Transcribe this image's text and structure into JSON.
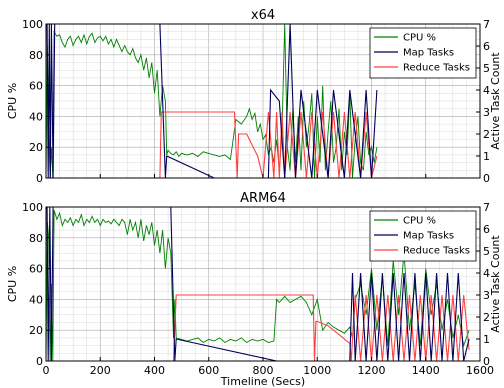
{
  "chart_data": [
    {
      "type": "line",
      "title": "x64",
      "xlabel": "",
      "ylabel": "CPU %",
      "ylabel_right": "Active Task Count",
      "xlim": [
        0,
        1600
      ],
      "ylim": [
        0,
        100
      ],
      "ylim_right": [
        0,
        7
      ],
      "x_ticks": [],
      "y_ticks": [
        "0",
        "20",
        "40",
        "60",
        "80",
        "100"
      ],
      "y_ticks_right": [
        "0",
        "1",
        "2",
        "3",
        "4",
        "5",
        "6",
        "7"
      ],
      "grid": true,
      "legend_position": "top-right",
      "series": [
        {
          "name": "CPU %",
          "color": "#008000",
          "axis": "left",
          "x": [
            0,
            5,
            10,
            15,
            20,
            25,
            30,
            40,
            50,
            60,
            70,
            80,
            90,
            100,
            110,
            120,
            130,
            140,
            150,
            160,
            170,
            180,
            190,
            200,
            210,
            220,
            230,
            240,
            250,
            260,
            270,
            280,
            290,
            300,
            310,
            320,
            330,
            340,
            350,
            360,
            370,
            380,
            390,
            400,
            410,
            420,
            430,
            440,
            445,
            450,
            460,
            470,
            480,
            490,
            500,
            520,
            540,
            560,
            580,
            600,
            620,
            640,
            660,
            680,
            700,
            720,
            740,
            750,
            760,
            770,
            780,
            790,
            800,
            810,
            820,
            830,
            840,
            850,
            860,
            870,
            880,
            890,
            900,
            910,
            920,
            930,
            940,
            950,
            960,
            970,
            980,
            990,
            1000,
            1010,
            1020,
            1030,
            1040,
            1050,
            1060,
            1070,
            1080,
            1090,
            1100,
            1110,
            1120,
            1130,
            1140,
            1150,
            1160,
            1170,
            1180,
            1190,
            1200,
            1210,
            1220
          ],
          "y": [
            0,
            85,
            30,
            0,
            20,
            0,
            95,
            92,
            93,
            88,
            85,
            90,
            92,
            86,
            90,
            92,
            88,
            93,
            87,
            92,
            94,
            88,
            91,
            92,
            89,
            92,
            87,
            90,
            85,
            90,
            86,
            82,
            86,
            82,
            80,
            84,
            78,
            75,
            80,
            70,
            78,
            65,
            75,
            55,
            70,
            40,
            60,
            50,
            15,
            18,
            16,
            15,
            17,
            14,
            16,
            15,
            16,
            14,
            17,
            16,
            15,
            14,
            15,
            12,
            38,
            35,
            40,
            45,
            38,
            42,
            30,
            35,
            25,
            28,
            15,
            20,
            10,
            25,
            5,
            30,
            100,
            20,
            5,
            45,
            10,
            40,
            5,
            50,
            20,
            35,
            55,
            0,
            40,
            10,
            60,
            5,
            30,
            50,
            10,
            20,
            45,
            5,
            30,
            15,
            55,
            0,
            25,
            40,
            10,
            5,
            30,
            15,
            20,
            10,
            20
          ]
        },
        {
          "name": "Map Tasks",
          "color": "#00005a",
          "axis": "right",
          "x": [
            0,
            4,
            8,
            12,
            16,
            20,
            26,
            32,
            420,
            440,
            445,
            620,
            660,
            680,
            800,
            820,
            828,
            860,
            880,
            900,
            920,
            940,
            980,
            1000,
            1040,
            1060,
            1100,
            1120,
            1160,
            1180,
            1200,
            1220
          ],
          "y": [
            7,
            7,
            0,
            7,
            0,
            7,
            0,
            7,
            7,
            0,
            1,
            0,
            0,
            0,
            0,
            0,
            4,
            3.5,
            0,
            7,
            0,
            4,
            0,
            4,
            0,
            4,
            0,
            4,
            0,
            4,
            0,
            4
          ]
        },
        {
          "name": "Reduce Tasks",
          "color": "#ff4040",
          "axis": "right",
          "x": [
            415,
            420,
            425,
            695,
            705,
            710,
            740,
            760,
            780,
            800,
            820,
            840,
            850,
            860,
            870,
            880,
            900,
            920,
            940,
            960,
            980,
            1000,
            1020,
            1040,
            1060,
            1080,
            1100,
            1120,
            1140,
            1160,
            1180,
            1200,
            1220
          ],
          "y": [
            0,
            0,
            3,
            3,
            0,
            2,
            2,
            1.5,
            1,
            0,
            3,
            0,
            3,
            0,
            3,
            0,
            3,
            0,
            3,
            0,
            3,
            0,
            3,
            0,
            3,
            0,
            3,
            0,
            3,
            0,
            3,
            0,
            1
          ]
        }
      ]
    },
    {
      "type": "line",
      "title": "ARM64",
      "xlabel": "Timeline (Secs)",
      "ylabel": "CPU %",
      "ylabel_right": "Active Task Count",
      "xlim": [
        0,
        1600
      ],
      "ylim": [
        0,
        100
      ],
      "ylim_right": [
        0,
        7
      ],
      "x_ticks": [
        "0",
        "200",
        "400",
        "600",
        "800",
        "1000",
        "1200",
        "1400",
        "1600"
      ],
      "y_ticks": [
        "0",
        "20",
        "40",
        "60",
        "80",
        "100"
      ],
      "y_ticks_right": [
        "0",
        "1",
        "2",
        "3",
        "4",
        "5",
        "6",
        "7"
      ],
      "grid": true,
      "legend_position": "top-right",
      "series": [
        {
          "name": "CPU %",
          "color": "#008000",
          "axis": "left",
          "x": [
            0,
            5,
            10,
            15,
            20,
            25,
            30,
            40,
            50,
            60,
            70,
            80,
            90,
            100,
            110,
            120,
            130,
            140,
            150,
            160,
            170,
            180,
            190,
            200,
            210,
            220,
            230,
            240,
            250,
            260,
            270,
            280,
            290,
            300,
            310,
            320,
            330,
            340,
            350,
            360,
            370,
            380,
            390,
            400,
            410,
            420,
            430,
            440,
            450,
            460,
            470,
            475,
            480,
            500,
            520,
            540,
            560,
            580,
            600,
            620,
            640,
            660,
            680,
            700,
            720,
            740,
            760,
            780,
            800,
            820,
            840,
            850,
            860,
            880,
            900,
            920,
            940,
            960,
            980,
            990,
            1000,
            1020,
            1040,
            1060,
            1080,
            1100,
            1110,
            1120,
            1130,
            1140,
            1160,
            1180,
            1200,
            1220,
            1240,
            1260,
            1280,
            1300,
            1320,
            1340,
            1360,
            1380,
            1400,
            1420,
            1440,
            1460,
            1480,
            1500,
            1520,
            1540,
            1560
          ],
          "y": [
            0,
            90,
            80,
            0,
            50,
            0,
            98,
            92,
            96,
            88,
            92,
            90,
            93,
            88,
            92,
            90,
            95,
            88,
            92,
            90,
            94,
            90,
            92,
            88,
            92,
            90,
            91,
            89,
            92,
            90,
            88,
            92,
            90,
            82,
            92,
            85,
            90,
            80,
            92,
            78,
            88,
            82,
            90,
            75,
            85,
            70,
            85,
            60,
            80,
            70,
            15,
            40,
            15,
            14,
            13,
            14,
            15,
            12,
            14,
            13,
            15,
            12,
            14,
            13,
            15,
            12,
            14,
            13,
            14,
            12,
            13,
            40,
            38,
            42,
            38,
            40,
            42,
            38,
            30,
            35,
            40,
            20,
            25,
            22,
            20,
            18,
            20,
            22,
            15,
            40,
            50,
            30,
            60,
            20,
            55,
            10,
            65,
            30,
            70,
            20,
            50,
            10,
            60,
            30,
            50,
            20,
            40,
            15,
            30,
            10,
            20
          ]
        },
        {
          "name": "Map Tasks",
          "color": "#00005a",
          "axis": "right",
          "x": [
            0,
            4,
            8,
            14,
            20,
            26,
            30,
            460,
            475,
            480,
            850,
            870,
            1000,
            1120,
            1130,
            1140,
            1160,
            1180,
            1200,
            1220,
            1240,
            1260,
            1280,
            1300,
            1320,
            1340,
            1360,
            1380,
            1400,
            1420,
            1440,
            1460,
            1480,
            1500,
            1520,
            1540,
            1560
          ],
          "y": [
            7,
            7,
            0,
            7,
            0,
            7,
            7,
            7,
            0,
            1,
            0,
            0,
            0,
            0,
            4,
            0,
            4,
            0,
            4,
            0,
            4,
            0,
            4,
            0,
            4,
            0,
            4,
            0,
            4,
            0,
            4,
            0,
            4,
            0,
            4,
            0,
            1
          ]
        },
        {
          "name": "Reduce Tasks",
          "color": "#ff4040",
          "axis": "right",
          "x": [
            465,
            470,
            480,
            985,
            990,
            995,
            1000,
            1040,
            1080,
            1120,
            1125,
            1140,
            1160,
            1180,
            1200,
            1220,
            1240,
            1260,
            1280,
            1300,
            1320,
            1340,
            1360,
            1380,
            1400,
            1420,
            1440,
            1460,
            1480,
            1500,
            1520,
            1540,
            1560
          ],
          "y": [
            0,
            0,
            3,
            3,
            0,
            1.8,
            1.8,
            1.6,
            1.2,
            0.8,
            0,
            3,
            0,
            3,
            0,
            3,
            0,
            3,
            0,
            3,
            0,
            3,
            0,
            3,
            0,
            3,
            0,
            3,
            0,
            3,
            0,
            3,
            0.5
          ]
        }
      ]
    }
  ]
}
